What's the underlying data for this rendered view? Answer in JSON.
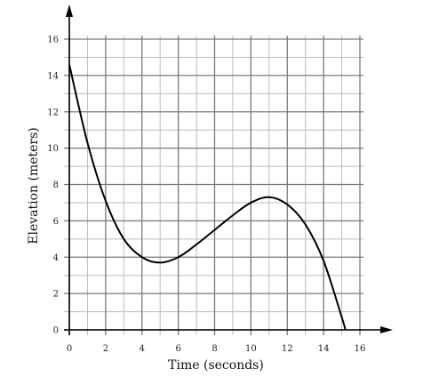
{
  "chart_data": {
    "type": "line",
    "title": "",
    "xlabel": "Time (seconds)",
    "ylabel": "Elevation (meters)",
    "xlim": [
      0,
      16
    ],
    "ylim": [
      0,
      16
    ],
    "x_ticks": [
      "0",
      "2",
      "4",
      "6",
      "8",
      "10",
      "12",
      "14",
      "16"
    ],
    "y_ticks": [
      "0",
      "2",
      "4",
      "6",
      "8",
      "10",
      "12",
      "14",
      "16"
    ],
    "grid": true,
    "minor_grid_step": 1,
    "major_grid_step": 2,
    "colors": {
      "line": "#000000",
      "major_grid": "#7a7a7a",
      "minor_grid": "#bdbdbd",
      "axis": "#000000"
    },
    "series": [
      {
        "x": [
          0,
          1,
          2,
          3,
          4,
          5,
          6,
          7,
          8,
          9,
          10,
          11,
          12,
          13,
          14,
          15,
          15.2
        ],
        "y": [
          14.6,
          10.3,
          7.1,
          5.0,
          4.0,
          3.7,
          4.0,
          4.7,
          5.5,
          6.3,
          7.0,
          7.3,
          6.9,
          5.8,
          3.8,
          0.7,
          0
        ]
      }
    ]
  }
}
